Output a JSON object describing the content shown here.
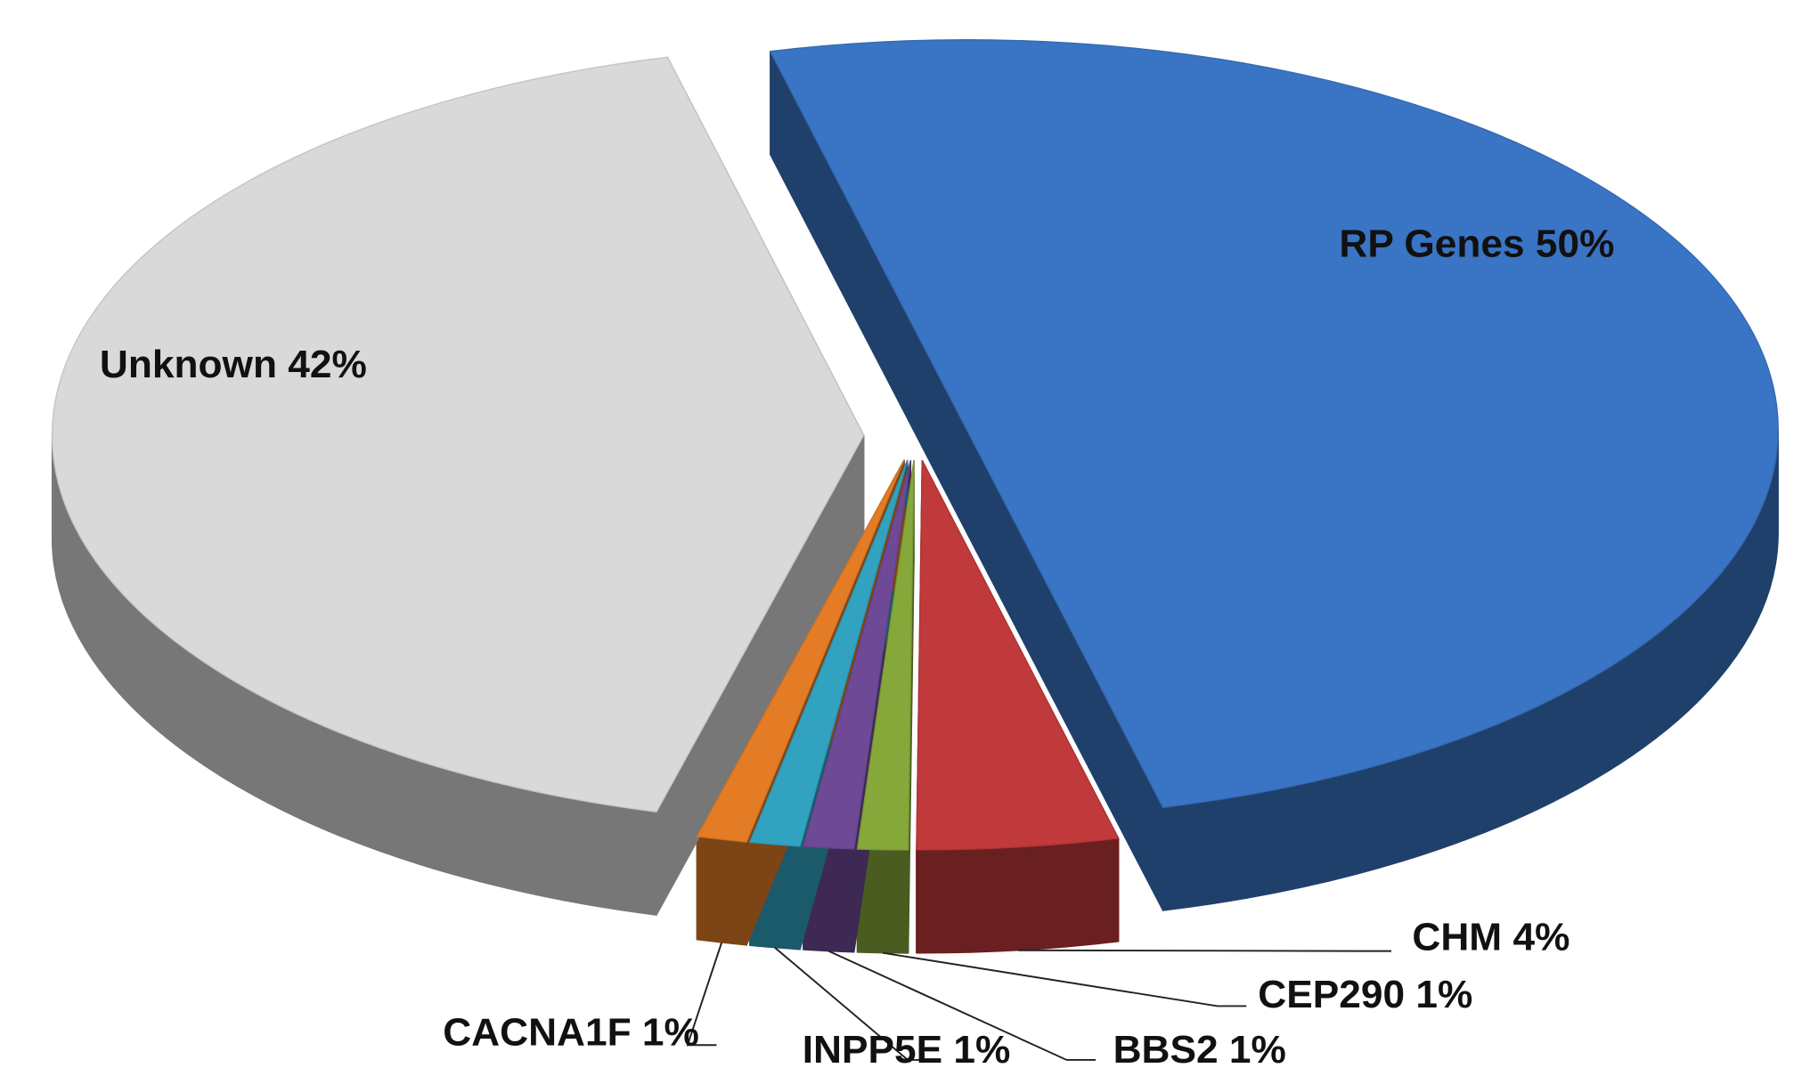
{
  "chart_data": {
    "type": "pie",
    "categories": [
      "RP Genes",
      "CHM",
      "CEP290",
      "BBS2",
      "INPP5E",
      "CACNA1F",
      "Unknown"
    ],
    "values": [
      50,
      4,
      1,
      1,
      1,
      1,
      42
    ],
    "value_labels": [
      "50%",
      "4%",
      "1%",
      "1%",
      "1%",
      "1%",
      "42%"
    ],
    "colors": [
      "#3a74c4",
      "#c0393b",
      "#86a83a",
      "#6e4a96",
      "#31a3c0",
      "#e47c26",
      "#d9d9d9"
    ]
  }
}
